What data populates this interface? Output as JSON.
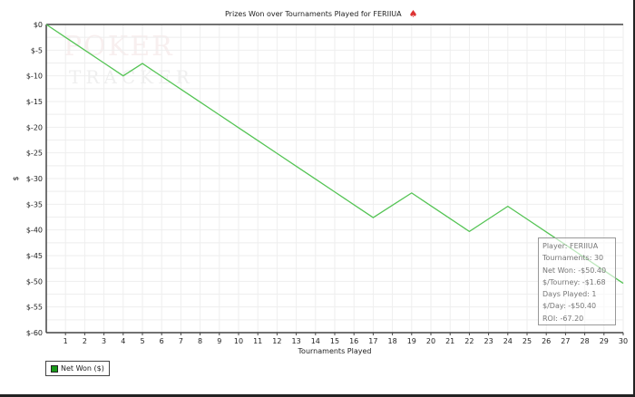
{
  "chart_data": {
    "type": "line",
    "title": "Prizes Won over Tournaments Played for FERIIUA",
    "xlabel": "Tournaments Played",
    "ylabel": "$",
    "xlim": [
      0,
      30
    ],
    "ylim": [
      -60,
      0
    ],
    "xticks": [
      1,
      2,
      3,
      4,
      5,
      6,
      7,
      8,
      9,
      10,
      11,
      12,
      13,
      14,
      15,
      16,
      17,
      18,
      19,
      20,
      21,
      22,
      23,
      24,
      25,
      26,
      27,
      28,
      29,
      30
    ],
    "yticks": [
      "$0",
      "$-5",
      "$-10",
      "$-15",
      "$-20",
      "$-25",
      "$-30",
      "$-35",
      "$-40",
      "$-45",
      "$-50",
      "$-55",
      "$-60"
    ],
    "grid": true,
    "legend_placement": "bottom-left",
    "series": [
      {
        "name": "Net Won ($)",
        "color": "#55c455",
        "x": [
          0,
          1,
          2,
          3,
          4,
          5,
          6,
          7,
          8,
          9,
          10,
          11,
          12,
          13,
          14,
          15,
          16,
          17,
          18,
          19,
          20,
          21,
          22,
          23,
          24,
          25,
          26,
          27,
          28,
          29,
          30
        ],
        "values": [
          0,
          -2.5,
          -5,
          -7.5,
          -10,
          -7.6,
          -10.1,
          -12.6,
          -15.1,
          -17.6,
          -20.1,
          -22.6,
          -25.1,
          -27.6,
          -30.1,
          -32.6,
          -35.1,
          -37.6,
          -35.2,
          -32.8,
          -35.3,
          -37.8,
          -40.3,
          -37.85,
          -35.4,
          -37.9,
          -40.4,
          -42.9,
          -45.4,
          -47.9,
          -50.4
        ]
      }
    ]
  },
  "watermark": "POKER TRACKER 3",
  "logo_icon": "spade-icon",
  "info_box": [
    "Player: FERIIUA",
    "Tournaments: 30",
    "Net Won: -$50.40",
    "$/Tourney: -$1.68",
    "Days Played: 1",
    "$/Day: -$50.40",
    "ROI: -67.20"
  ],
  "legend": {
    "label": "Net Won ($)"
  }
}
